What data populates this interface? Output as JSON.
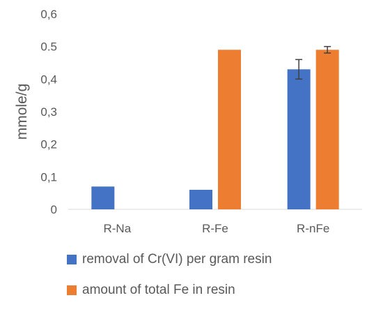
{
  "chart_data": {
    "type": "bar",
    "categories": [
      "R-Na",
      "R-Fe",
      "R-nFe"
    ],
    "series": [
      {
        "name": "removal of Cr(VI) per gram resin",
        "values": [
          0.07,
          0.06,
          0.43
        ],
        "error": [
          null,
          null,
          0.03
        ],
        "color": "#4472C4"
      },
      {
        "name": "amount of total Fe in resin",
        "values": [
          0,
          0.49,
          0.49
        ],
        "error": [
          null,
          null,
          0.01
        ],
        "color": "#ED7D31"
      }
    ],
    "ylabel": "mmole/g",
    "xlabel": "",
    "ylim": [
      0,
      0.6
    ],
    "yticks": [
      {
        "value": 0,
        "label": "0"
      },
      {
        "value": 0.1,
        "label": "0,1"
      },
      {
        "value": 0.2,
        "label": "0,2"
      },
      {
        "value": 0.3,
        "label": "0,3"
      },
      {
        "value": 0.4,
        "label": "0,4"
      },
      {
        "value": 0.5,
        "label": "0.5"
      },
      {
        "value": 0.6,
        "label": "0,6"
      }
    ],
    "grid": false,
    "legend_position": "bottom"
  }
}
